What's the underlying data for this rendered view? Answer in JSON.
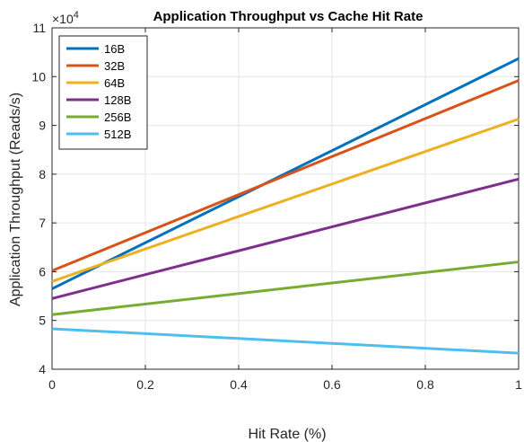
{
  "chart_data": {
    "type": "line",
    "title": "Application Throughput vs Cache Hit Rate",
    "xlabel": "Hit Rate (%)",
    "ylabel": "Application Throughput (Reads/s)",
    "y_exponent_base": "×10",
    "y_exponent_power": "4",
    "xlim": [
      0,
      1
    ],
    "ylim": [
      4,
      11
    ],
    "xticks": [
      0,
      0.2,
      0.4,
      0.6,
      0.8,
      1
    ],
    "xtick_labels": [
      "0",
      "0.2",
      "0.4",
      "0.6",
      "0.8",
      "1"
    ],
    "yticks": [
      4,
      5,
      6,
      7,
      8,
      9,
      10,
      11
    ],
    "ytick_labels": [
      "4",
      "5",
      "6",
      "7",
      "8",
      "9",
      "10",
      "11"
    ],
    "grid": true,
    "legend_position": "top-left",
    "series": [
      {
        "name": "16B",
        "color": "#0072BD",
        "x": [
          0,
          1
        ],
        "y": [
          5.65,
          10.37
        ]
      },
      {
        "name": "32B",
        "color": "#D95319",
        "x": [
          0,
          1
        ],
        "y": [
          6.02,
          9.92
        ]
      },
      {
        "name": "64B",
        "color": "#EDB120",
        "x": [
          0,
          1
        ],
        "y": [
          5.8,
          9.13
        ]
      },
      {
        "name": "128B",
        "color": "#7E2F8E",
        "x": [
          0,
          1
        ],
        "y": [
          5.45,
          7.9
        ]
      },
      {
        "name": "256B",
        "color": "#77AC30",
        "x": [
          0,
          1
        ],
        "y": [
          5.12,
          6.2
        ]
      },
      {
        "name": "512B",
        "color": "#4DBEEE",
        "x": [
          0,
          1
        ],
        "y": [
          4.83,
          4.33
        ]
      }
    ]
  }
}
